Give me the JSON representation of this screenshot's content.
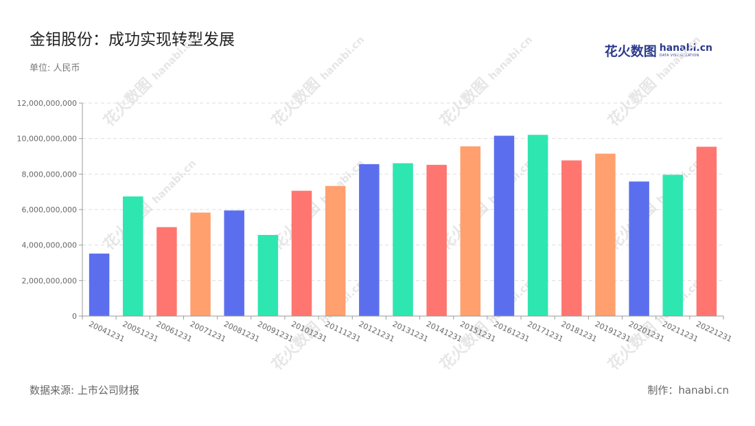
{
  "header": {
    "title": "金钼股份：成功实现转型发展",
    "unit": "单位: 人民币"
  },
  "brand": {
    "cn": "花火数图",
    "en": "hanabi.cn",
    "en_sub": "DATA VISUALIZATION"
  },
  "footer": {
    "source": "数据来源: 上市公司财报",
    "maker": "制作：hanabi.cn"
  },
  "watermark": {
    "cn": "花火数图",
    "en": "hanabi.cn"
  },
  "colors": {
    "palette": [
      "#5b6fee",
      "#2ee6b0",
      "#ff7670",
      "#ffa06e"
    ],
    "grid": "#dddddd",
    "axis": "#999999",
    "tick": "#666666"
  },
  "chart_data": {
    "type": "bar",
    "categories": [
      "20041231",
      "20051231",
      "20061231",
      "20071231",
      "20081231",
      "20091231",
      "20101231",
      "20111231",
      "20121231",
      "20131231",
      "20141231",
      "20151231",
      "20161231",
      "20171231",
      "20181231",
      "20191231",
      "20201231",
      "20211231",
      "20221231"
    ],
    "values": [
      3520000000,
      6740000000,
      5010000000,
      5830000000,
      5950000000,
      4570000000,
      7060000000,
      7330000000,
      8560000000,
      8610000000,
      8520000000,
      9560000000,
      10160000000,
      10210000000,
      8770000000,
      9150000000,
      7580000000,
      7960000000,
      9540000000
    ],
    "yticks": [
      "0",
      "2,000,000,000",
      "4,000,000,000",
      "6,000,000,000",
      "8,000,000,000",
      "10,000,000,000",
      "12,000,000,000"
    ],
    "ylim": [
      0,
      12000000000
    ],
    "grid": true
  }
}
